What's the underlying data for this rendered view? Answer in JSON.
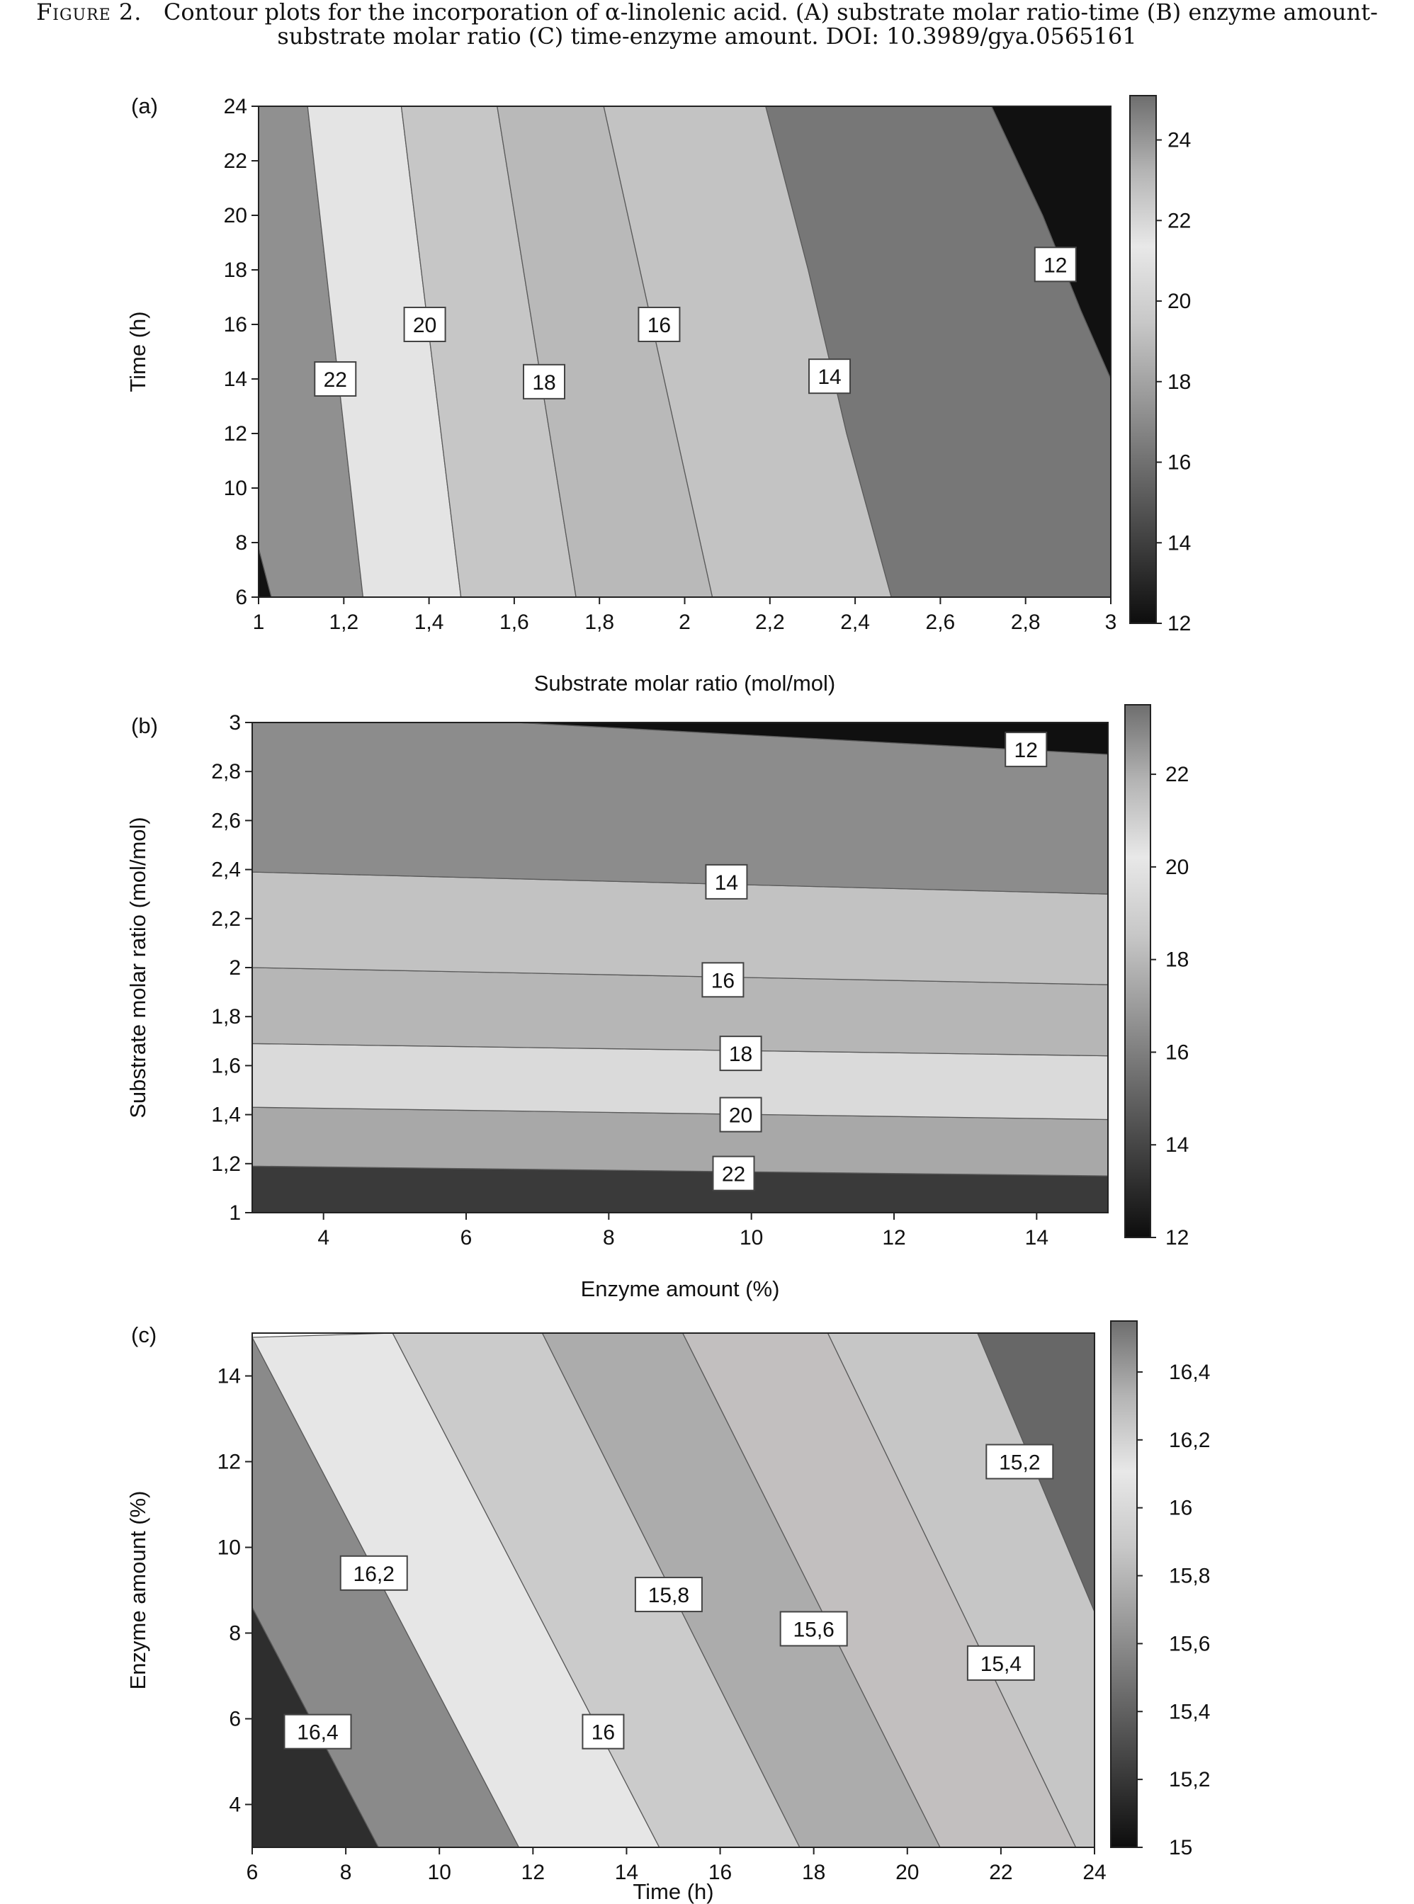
{
  "caption": {
    "label": "Figure 2.",
    "text": "Contour plots for the incorporation of α-linolenic acid. (A) substrate molar ratio-time (B) enzyme amount-substrate molar ratio (C) time-enzyme amount. DOI: 10.3989/gya.0565161"
  },
  "chart_data": [
    {
      "type": "contour",
      "panel_label": "(a)",
      "xlabel": "Substrate molar ratio (mol/mol)",
      "ylabel": "Time (h)",
      "xlim": [
        1,
        3
      ],
      "ylim": [
        6,
        24
      ],
      "xticks": [
        1,
        1.2,
        1.4,
        1.6,
        1.8,
        2,
        2.2,
        2.4,
        2.6,
        2.8,
        3
      ],
      "xtick_labels": [
        "1",
        "1,2",
        "1,4",
        "1,6",
        "1,8",
        "2",
        "2,2",
        "2,4",
        "2,6",
        "2,8",
        "3"
      ],
      "yticks": [
        6,
        8,
        10,
        12,
        14,
        16,
        18,
        20,
        22,
        24
      ],
      "ytick_labels": [
        "6",
        "8",
        "10",
        "12",
        "14",
        "16",
        "18",
        "20",
        "22",
        "24"
      ],
      "colorbar": {
        "range": [
          12,
          25.1
        ],
        "ticks": [
          12,
          14,
          16,
          18,
          20,
          22,
          24
        ],
        "tick_labels": [
          "12",
          "14",
          "16",
          "18",
          "20",
          "22",
          "24"
        ],
        "colors": [
          "#0d0d0d",
          "#3c3c3c",
          "#6a6a6a",
          "#9a9a9a",
          "#c8c8c8",
          "#e8e8e8",
          "#b4b4b4",
          "#6e6e6e"
        ]
      },
      "regions": [
        {
          "fill": "#121212",
          "points": [
            [
              1,
              6
            ],
            [
              1,
              7.8
            ],
            [
              1.03,
              6
            ]
          ]
        },
        {
          "fill": "#909090",
          "points": [
            [
              1,
              7.8
            ],
            [
              1,
              24
            ],
            [
              1.115,
              24
            ],
            [
              1.245,
              6
            ],
            [
              1.03,
              6
            ]
          ]
        },
        {
          "fill": "#e4e4e4",
          "points": [
            [
              1.115,
              24
            ],
            [
              1.335,
              24
            ],
            [
              1.475,
              6
            ],
            [
              1.245,
              6
            ]
          ]
        },
        {
          "fill": "#c6c6c6",
          "points": [
            [
              1.335,
              24
            ],
            [
              1.56,
              24
            ],
            [
              1.745,
              6
            ],
            [
              1.475,
              6
            ]
          ]
        },
        {
          "fill": "#b9b9b9",
          "points": [
            [
              1.56,
              24
            ],
            [
              1.81,
              24
            ],
            [
              2.065,
              6
            ],
            [
              1.745,
              6
            ]
          ]
        },
        {
          "fill": "#c3c3c3",
          "points": [
            [
              1.81,
              24
            ],
            [
              2.19,
              24
            ],
            [
              2.29,
              18
            ],
            [
              2.38,
              12
            ],
            [
              2.485,
              6
            ],
            [
              2.065,
              6
            ]
          ]
        },
        {
          "fill": "#777777",
          "points": [
            [
              2.19,
              24
            ],
            [
              2.72,
              24
            ],
            [
              2.84,
              20
            ],
            [
              2.93,
              16.5
            ],
            [
              3,
              14
            ],
            [
              3,
              6
            ],
            [
              2.485,
              6
            ],
            [
              2.38,
              12
            ],
            [
              2.29,
              18
            ]
          ]
        },
        {
          "fill": "#111111",
          "points": [
            [
              2.72,
              24
            ],
            [
              3,
              24
            ],
            [
              3,
              14
            ],
            [
              2.93,
              16.5
            ],
            [
              2.84,
              20
            ]
          ]
        }
      ],
      "contour_labels": [
        {
          "text": "22",
          "x": 1.18,
          "y": 14
        },
        {
          "text": "20",
          "x": 1.39,
          "y": 16
        },
        {
          "text": "18",
          "x": 1.67,
          "y": 13.9
        },
        {
          "text": "16",
          "x": 1.94,
          "y": 16
        },
        {
          "text": "14",
          "x": 2.34,
          "y": 14.1
        },
        {
          "text": "12",
          "x": 2.87,
          "y": 18.2
        }
      ]
    },
    {
      "type": "contour",
      "panel_label": "(b)",
      "xlabel": "Enzyme amount (%)",
      "ylabel": "Substrate molar ratio (mol/mol)",
      "xlim": [
        3,
        15
      ],
      "ylim": [
        1,
        3
      ],
      "xticks": [
        4,
        6,
        8,
        10,
        12,
        14
      ],
      "xtick_labels": [
        "4",
        "6",
        "8",
        "10",
        "12",
        "14"
      ],
      "yticks": [
        1,
        1.2,
        1.4,
        1.6,
        1.8,
        2,
        2.2,
        2.4,
        2.6,
        2.8,
        3
      ],
      "ytick_labels": [
        "1",
        "1,2",
        "1,4",
        "1,6",
        "1,8",
        "2",
        "2,2",
        "2,4",
        "2,6",
        "2,8",
        "3"
      ],
      "colorbar": {
        "range": [
          12,
          23.5
        ],
        "ticks": [
          12,
          14,
          16,
          18,
          20,
          22
        ],
        "tick_labels": [
          "12",
          "14",
          "16",
          "18",
          "20",
          "22"
        ],
        "colors": [
          "#0d0d0d",
          "#3c3c3c",
          "#6a6a6a",
          "#9a9a9a",
          "#c8c8c8",
          "#e8e8e8",
          "#b4b4b4",
          "#6e6e6e"
        ]
      },
      "regions": [
        {
          "fill": "#3a3a3a",
          "points": [
            [
              3,
              1
            ],
            [
              3,
              1.19
            ],
            [
              15,
              1.15
            ],
            [
              15,
              1
            ]
          ]
        },
        {
          "fill": "#a8a8a8",
          "points": [
            [
              3,
              1.19
            ],
            [
              3,
              1.43
            ],
            [
              15,
              1.38
            ],
            [
              15,
              1.15
            ]
          ]
        },
        {
          "fill": "#dadada",
          "points": [
            [
              3,
              1.43
            ],
            [
              3,
              1.69
            ],
            [
              15,
              1.64
            ],
            [
              15,
              1.38
            ]
          ]
        },
        {
          "fill": "#b6b6b6",
          "points": [
            [
              3,
              1.69
            ],
            [
              3,
              2
            ],
            [
              15,
              1.93
            ],
            [
              15,
              1.64
            ]
          ]
        },
        {
          "fill": "#c2c2c2",
          "points": [
            [
              3,
              2
            ],
            [
              3,
              2.39
            ],
            [
              15,
              2.3
            ],
            [
              15,
              1.93
            ]
          ]
        },
        {
          "fill": "#8c8c8c",
          "points": [
            [
              3,
              2.39
            ],
            [
              3,
              3
            ],
            [
              6.7,
              3
            ],
            [
              15,
              2.87
            ],
            [
              15,
              2.3
            ]
          ]
        },
        {
          "fill": "#101010",
          "points": [
            [
              6.7,
              3
            ],
            [
              15,
              3
            ],
            [
              15,
              2.87
            ]
          ]
        }
      ],
      "contour_labels": [
        {
          "text": "12",
          "x": 13.85,
          "y": 2.89
        },
        {
          "text": "14",
          "x": 9.65,
          "y": 2.35
        },
        {
          "text": "16",
          "x": 9.6,
          "y": 1.95
        },
        {
          "text": "18",
          "x": 9.85,
          "y": 1.65
        },
        {
          "text": "20",
          "x": 9.85,
          "y": 1.4
        },
        {
          "text": "22",
          "x": 9.75,
          "y": 1.16
        }
      ]
    },
    {
      "type": "contour",
      "panel_label": "(c)",
      "xlabel": "Time (h)",
      "ylabel": "Enzyme amount (%)",
      "xlim": [
        6,
        24
      ],
      "ylim": [
        3,
        15
      ],
      "xticks": [
        6,
        8,
        10,
        12,
        14,
        16,
        18,
        20,
        22,
        24
      ],
      "xtick_labels": [
        "6",
        "8",
        "10",
        "12",
        "14",
        "16",
        "18",
        "20",
        "22",
        "24"
      ],
      "yticks": [
        4,
        6,
        8,
        10,
        12,
        14
      ],
      "ytick_labels": [
        "4",
        "6",
        "8",
        "10",
        "12",
        "14"
      ],
      "colorbar": {
        "range": [
          15,
          16.55
        ],
        "ticks": [
          15,
          15.2,
          15.4,
          15.6,
          15.8,
          16,
          16.2,
          16.4
        ],
        "tick_labels": [
          "15",
          "15,2",
          "15,4",
          "15,6",
          "15,8",
          "16",
          "16,2",
          "16,4"
        ],
        "colors": [
          "#0d0d0d",
          "#3c3c3c",
          "#6a6a6a",
          "#9a9a9a",
          "#c8c8c8",
          "#e8e8e8",
          "#b4b4b4",
          "#6e6e6e"
        ]
      },
      "regions": [
        {
          "fill": "#2e2e2e",
          "points": [
            [
              6,
              3
            ],
            [
              6,
              8.6
            ],
            [
              8.7,
              3
            ]
          ]
        },
        {
          "fill": "#8a8a8a",
          "points": [
            [
              6,
              8.6
            ],
            [
              6,
              14.9
            ],
            [
              11.7,
              3
            ],
            [
              8.7,
              3
            ]
          ]
        },
        {
          "fill": "#e6e6e6",
          "points": [
            [
              6,
              14.9
            ],
            [
              9,
              15
            ],
            [
              14.7,
              3
            ],
            [
              11.7,
              3
            ]
          ]
        },
        {
          "fill": "#cbcbcb",
          "points": [
            [
              9,
              15
            ],
            [
              12.2,
              15
            ],
            [
              17.7,
              3
            ],
            [
              14.7,
              3
            ]
          ]
        },
        {
          "fill": "#acacac",
          "points": [
            [
              12.2,
              15
            ],
            [
              15.2,
              15
            ],
            [
              20.7,
              3
            ],
            [
              17.7,
              3
            ]
          ]
        },
        {
          "fill": "#c2bfbf",
          "points": [
            [
              15.2,
              15
            ],
            [
              18.3,
              15
            ],
            [
              23.6,
              3
            ],
            [
              20.7,
              3
            ]
          ]
        },
        {
          "fill": "#c6c6c6",
          "points": [
            [
              18.3,
              15
            ],
            [
              21.5,
              15
            ],
            [
              24,
              8.5
            ],
            [
              24,
              3
            ],
            [
              23.6,
              3
            ]
          ]
        },
        {
          "fill": "#676767",
          "points": [
            [
              21.5,
              15
            ],
            [
              24,
              15
            ],
            [
              24,
              8.5
            ]
          ]
        }
      ],
      "contour_labels": [
        {
          "text": "16,4",
          "x": 7.4,
          "y": 5.7
        },
        {
          "text": "16,2",
          "x": 8.6,
          "y": 9.4
        },
        {
          "text": "16",
          "x": 13.5,
          "y": 5.7
        },
        {
          "text": "15,8",
          "x": 14.9,
          "y": 8.9
        },
        {
          "text": "15,6",
          "x": 18.0,
          "y": 8.1
        },
        {
          "text": "15,4",
          "x": 22.0,
          "y": 7.3
        },
        {
          "text": "15,2",
          "x": 22.4,
          "y": 12.0
        }
      ]
    }
  ]
}
